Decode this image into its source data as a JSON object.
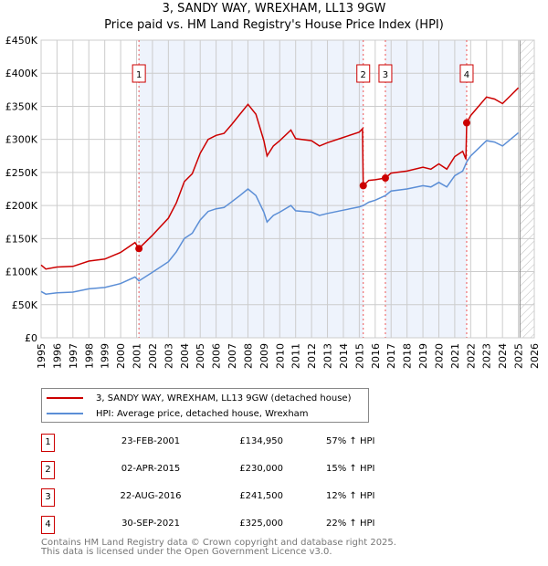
{
  "title": "3, SANDY WAY, WREXHAM, LL13 9GW",
  "subtitle": "Price paid vs. HM Land Registry's House Price Index (HPI)",
  "chart_data": {
    "type": "line",
    "title": "3, SANDY WAY, WREXHAM, LL13 9GW",
    "subtitle": "Price paid vs. HM Land Registry's House Price Index (HPI)",
    "xlim": [
      1995,
      2026
    ],
    "ylim": [
      0,
      450000
    ],
    "grid": true,
    "y_ticks": [
      0,
      50000,
      100000,
      150000,
      200000,
      250000,
      300000,
      350000,
      400000,
      450000
    ],
    "y_tick_labels": [
      "£0",
      "£50K",
      "£100K",
      "£150K",
      "£200K",
      "£250K",
      "£300K",
      "£350K",
      "£400K",
      "£450K"
    ],
    "x_tick_labels": [
      "1995",
      "1996",
      "1997",
      "1998",
      "1999",
      "2000",
      "2001",
      "2002",
      "2003",
      "2004",
      "2005",
      "2006",
      "2007",
      "2008",
      "2009",
      "2010",
      "2011",
      "2012",
      "2013",
      "2014",
      "2015",
      "2016",
      "2017",
      "2018",
      "2019",
      "2020",
      "2021",
      "2022",
      "2023",
      "2024",
      "2025",
      "2026"
    ],
    "series": [
      {
        "name": "3, SANDY WAY, WREXHAM, LL13 9GW (detached house)",
        "color": "#cc0000",
        "x": [
          1995,
          1995.3,
          1996,
          1997,
          1998,
          1999,
          2000,
          2000.9,
          2001.15,
          2002,
          2003,
          2003.5,
          2004,
          2004.5,
          2005,
          2005.5,
          2006,
          2006.5,
          2007,
          2007.5,
          2008,
          2008.5,
          2009,
          2009.2,
          2009.6,
          2010,
          2010.7,
          2011,
          2012,
          2012.5,
          2013,
          2014,
          2015,
          2015.2,
          2015.25,
          2015.6,
          2016,
          2016.64,
          2017,
          2018,
          2019,
          2019.5,
          2020,
          2020.5,
          2021,
          2021.5,
          2021.7,
          2021.75,
          2022,
          2023,
          2023.5,
          2024,
          2024.5,
          2025
        ],
        "y": [
          110000,
          104000,
          107000,
          108000,
          116000,
          119000,
          129000,
          144000,
          134950,
          155000,
          181000,
          204000,
          236000,
          248000,
          279000,
          300000,
          306000,
          309000,
          323000,
          338000,
          353000,
          338000,
          298000,
          275000,
          290000,
          298000,
          314000,
          301000,
          298000,
          290000,
          295000,
          303000,
          311000,
          316000,
          230000,
          238000,
          239000,
          241500,
          249000,
          252000,
          258000,
          255000,
          263000,
          255000,
          274000,
          282000,
          270000,
          325000,
          336000,
          364000,
          361000,
          354000,
          366000,
          378000
        ]
      },
      {
        "name": "HPI: Average price, detached house, Wrexham",
        "color": "#5b8ed6",
        "x": [
          1995,
          1995.3,
          1996,
          1997,
          1998,
          1999,
          2000,
          2000.9,
          2001.15,
          2002,
          2003,
          2003.5,
          2004,
          2004.5,
          2005,
          2005.5,
          2006,
          2006.5,
          2007,
          2007.5,
          2008,
          2008.5,
          2009,
          2009.2,
          2009.6,
          2010,
          2010.7,
          2011,
          2012,
          2012.5,
          2013,
          2014,
          2015,
          2015.25,
          2015.6,
          2016,
          2016.64,
          2017,
          2018,
          2019,
          2019.5,
          2020,
          2020.5,
          2021,
          2021.5,
          2021.75,
          2022,
          2023,
          2023.5,
          2024,
          2024.5,
          2025
        ],
        "y": [
          70000,
          66000,
          68000,
          69000,
          74000,
          76000,
          82000,
          92000,
          86000,
          99000,
          115000,
          130000,
          150000,
          158000,
          178000,
          191000,
          195000,
          197000,
          206000,
          215000,
          225000,
          215000,
          190000,
          175000,
          185000,
          190000,
          200000,
          192000,
          190000,
          185000,
          188000,
          193000,
          198000,
          200000,
          205000,
          208000,
          215000,
          222000,
          225000,
          230000,
          228000,
          235000,
          228000,
          245000,
          252000,
          266000,
          275000,
          298000,
          296000,
          290000,
          300000,
          310000
        ]
      }
    ],
    "sales": [
      {
        "label": "1",
        "x": 2001.15,
        "price": 134950
      },
      {
        "label": "2",
        "x": 2015.25,
        "price": 230000
      },
      {
        "label": "3",
        "x": 2016.64,
        "price": 241500
      },
      {
        "label": "4",
        "x": 2021.75,
        "price": 325000
      }
    ],
    "shaded_ranges": [
      [
        2001.15,
        2015.25
      ],
      [
        2016.64,
        2021.75
      ]
    ],
    "forecast_hatch_from": 2025.1,
    "legend_position": "below"
  },
  "legend": [
    {
      "label": "3, SANDY WAY, WREXHAM, LL13 9GW (detached house)",
      "color": "#cc0000"
    },
    {
      "label": "HPI: Average price, detached house, Wrexham",
      "color": "#5b8ed6"
    }
  ],
  "sales_table": [
    {
      "num": "1",
      "date": "23-FEB-2001",
      "price": "£134,950",
      "hpi": "57% ↑ HPI"
    },
    {
      "num": "2",
      "date": "02-APR-2015",
      "price": "£230,000",
      "hpi": "15% ↑ HPI"
    },
    {
      "num": "3",
      "date": "22-AUG-2016",
      "price": "£241,500",
      "hpi": "12% ↑ HPI"
    },
    {
      "num": "4",
      "date": "30-SEP-2021",
      "price": "£325,000",
      "hpi": "22% ↑ HPI"
    }
  ],
  "footer": {
    "line1": "Contains HM Land Registry data © Crown copyright and database right 2025.",
    "line2": "This data is licensed under the Open Government Licence v3.0."
  }
}
